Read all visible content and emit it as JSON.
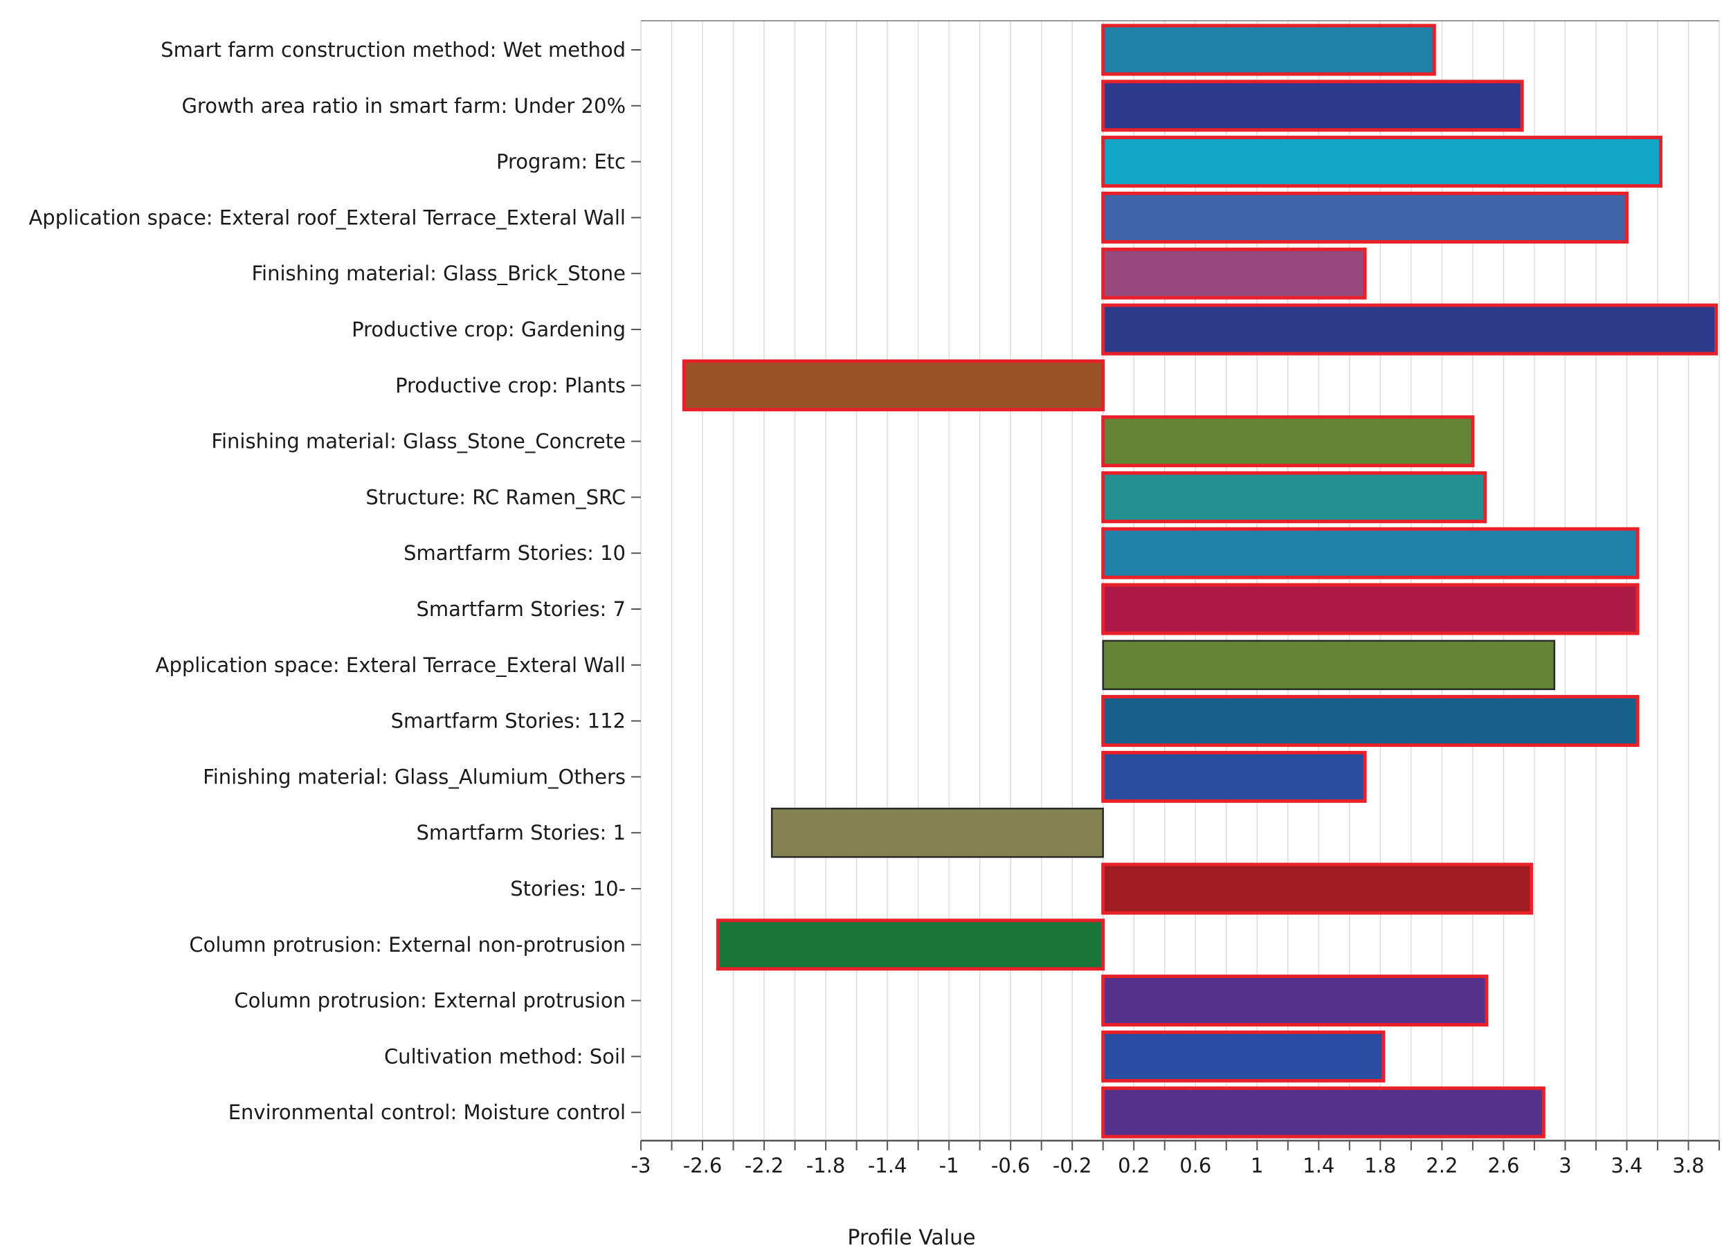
{
  "chart_data": {
    "type": "bar",
    "orientation": "horizontal",
    "title": "",
    "xlabel": "Profile Value",
    "ylabel": "",
    "xlim": [
      -3,
      4.0
    ],
    "grid": true,
    "xticks": [
      "-3",
      "-2.6",
      "-2.2",
      "-1.8",
      "-1.4",
      "-1",
      "-0.6",
      "-0.2",
      "0.2",
      "0.6",
      "1",
      "1.4",
      "1.8",
      "2.2",
      "2.6",
      "3",
      "3.4",
      "3.8"
    ],
    "xtick_values": [
      -3,
      -2.6,
      -2.2,
      -1.8,
      -1.4,
      -1,
      -0.6,
      -0.2,
      0.2,
      0.6,
      1,
      1.4,
      1.8,
      2.2,
      2.6,
      3,
      3.4,
      3.8
    ],
    "categories": [
      "Smart farm construction method: Wet method",
      "Growth area ratio in smart farm: Under 20%",
      "Program: Etc",
      "Application space: Exteral roof_Exteral Terrace_Exteral Wall",
      "Finishing material: Glass_Brick_Stone",
      "Productive crop: Gardening",
      "Productive crop: Plants",
      "Finishing material: Glass_Stone_Concrete",
      "Structure: RC Ramen_SRC",
      "Smartfarm Stories: 10",
      "Smartfarm Stories: 7",
      "Application space: Exteral Terrace_Exteral Wall",
      "Smartfarm Stories: 112",
      "Finishing material: Glass_Alumium_Others",
      "Smartfarm Stories: 1",
      "Stories: 10-",
      "Column protrusion: External non-protrusion",
      "Column protrusion: External protrusion",
      "Cultivation method: Soil",
      "Environmental control: Moisture control"
    ],
    "values": [
      2.15,
      2.72,
      3.62,
      3.4,
      1.7,
      3.98,
      -2.72,
      2.4,
      2.48,
      3.47,
      3.47,
      2.93,
      3.47,
      1.7,
      -2.15,
      2.78,
      -2.5,
      2.49,
      1.82,
      2.86
    ],
    "colors": [
      "#1f80a8",
      "#2e3a8e",
      "#12a6c8",
      "#3f64a8",
      "#96497f",
      "#2d3a8a",
      "#9a5228",
      "#628635",
      "#23918f",
      "#1f80a8",
      "#ad1a47",
      "#628635",
      "#156189",
      "#284ea0",
      "#848250",
      "#9c1c22",
      "#177638",
      "#54318a",
      "#274ea0",
      "#54318a"
    ],
    "highlighted": [
      true,
      true,
      true,
      true,
      true,
      true,
      true,
      true,
      true,
      true,
      true,
      false,
      true,
      true,
      false,
      true,
      true,
      true,
      true,
      true
    ]
  }
}
